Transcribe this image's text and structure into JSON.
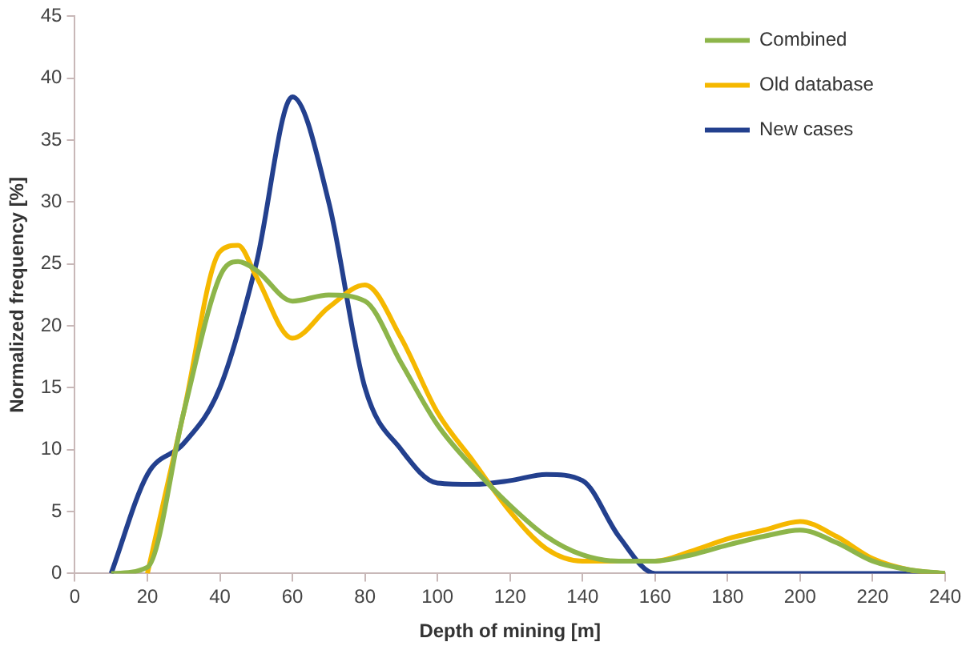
{
  "chart_data": {
    "type": "line",
    "xlabel": "Depth of mining [m]",
    "ylabel": "Normalized frequency [%]",
    "xlim": [
      0,
      240
    ],
    "xticks": [
      0,
      20,
      40,
      60,
      80,
      100,
      120,
      140,
      160,
      180,
      200,
      220,
      240
    ],
    "ylim": [
      0,
      45
    ],
    "yticks": [
      0,
      5,
      10,
      15,
      20,
      25,
      30,
      35,
      40,
      45
    ],
    "grid": false,
    "legend": "top right",
    "marker": "none",
    "line_style": "solid",
    "series": [
      {
        "name": "Combined",
        "color": "#8db54a",
        "x": [
          10,
          20,
          30,
          40,
          45,
          50,
          60,
          70,
          80,
          90,
          100,
          110,
          120,
          130,
          140,
          150,
          160,
          170,
          180,
          190,
          200,
          210,
          220,
          230,
          240
        ],
        "values": [
          0,
          0.5,
          13,
          24,
          25.2,
          24.5,
          22,
          22.5,
          22,
          17,
          12,
          8.5,
          5.5,
          3,
          1.5,
          1,
          1,
          1.5,
          2.3,
          3,
          3.5,
          2.5,
          1,
          0.3,
          0
        ]
      },
      {
        "name": "Old database",
        "color": "#f5b800",
        "x": [
          20,
          30,
          40,
          45,
          50,
          60,
          70,
          80,
          90,
          100,
          110,
          120,
          130,
          140,
          150,
          160,
          170,
          180,
          190,
          200,
          210,
          220,
          230,
          240
        ],
        "values": [
          0,
          13,
          26,
          26.5,
          24,
          19,
          21.5,
          23.3,
          19,
          13,
          9,
          5,
          2,
          1,
          1,
          1,
          1.8,
          2.8,
          3.5,
          4.2,
          3,
          1.2,
          0.3,
          0
        ]
      },
      {
        "name": "New cases",
        "color": "#23408e",
        "x": [
          10,
          20,
          30,
          40,
          50,
          60,
          70,
          80,
          90,
          100,
          110,
          120,
          130,
          140,
          150,
          160,
          200,
          240
        ],
        "values": [
          0,
          8,
          10.5,
          15,
          25,
          38.5,
          30,
          15,
          10,
          7.3,
          7.2,
          7.5,
          8,
          7.5,
          3,
          0,
          0,
          0
        ]
      }
    ]
  }
}
